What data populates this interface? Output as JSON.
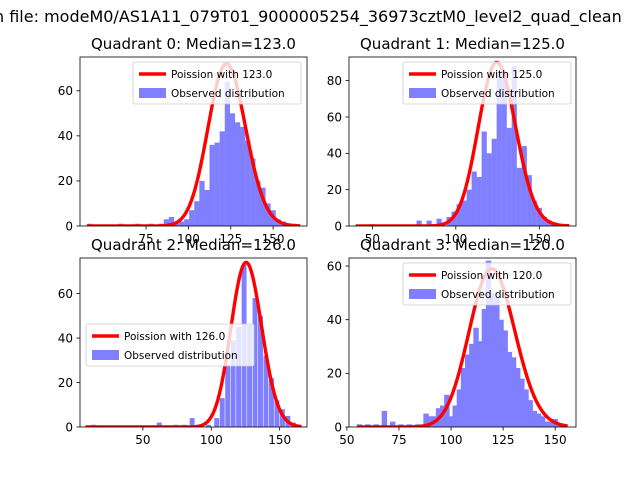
{
  "figure": {
    "suptitle": "n file: modeM0/AS1A11_079T01_9000005254_36973cztM0_level2_quad_clean"
  },
  "colors": {
    "hist": "#7f7fff",
    "fit": "#ff0000",
    "axis": "#000000"
  },
  "chart_data": [
    {
      "type": "bar",
      "title": "Quadrant 0: Median=123.0",
      "xlim": [
        36,
        170
      ],
      "ylim": [
        0,
        75
      ],
      "xticks": [
        75,
        100,
        125,
        150
      ],
      "yticks": [
        0,
        20,
        40,
        60
      ],
      "legend_position": "upper right",
      "bin_width": 3.1,
      "bars": [
        [
          42,
          1
        ],
        [
          60,
          1
        ],
        [
          70,
          1
        ],
        [
          78,
          1
        ],
        [
          84,
          1
        ],
        [
          87,
          3
        ],
        [
          90,
          4
        ],
        [
          93,
          1
        ],
        [
          96,
          2
        ],
        [
          99,
          3
        ],
        [
          102,
          7
        ],
        [
          105,
          11
        ],
        [
          108,
          20
        ],
        [
          111,
          16
        ],
        [
          114,
          36
        ],
        [
          117,
          37
        ],
        [
          120,
          42
        ],
        [
          123,
          64
        ],
        [
          126,
          50
        ],
        [
          129,
          46
        ],
        [
          132,
          44
        ],
        [
          135,
          38
        ],
        [
          138,
          30
        ],
        [
          141,
          20
        ],
        [
          144,
          17
        ],
        [
          147,
          10
        ],
        [
          150,
          7
        ],
        [
          153,
          3
        ],
        [
          156,
          2
        ],
        [
          162,
          1
        ]
      ],
      "series": [
        {
          "name": "Poission with 123.0",
          "kind": "poisson",
          "mean": 123.0,
          "peak": 72
        },
        {
          "name": "Observed distribution",
          "kind": "histogram"
        }
      ]
    },
    {
      "type": "bar",
      "title": "Quadrant 1: Median=125.0",
      "xlim": [
        36,
        172
      ],
      "ylim": [
        0,
        93
      ],
      "xticks": [
        50,
        100,
        150
      ],
      "yticks": [
        0,
        20,
        40,
        60,
        80
      ],
      "legend_position": "upper right",
      "bin_width": 3.1,
      "bars": [
        [
          50,
          1
        ],
        [
          78,
          3
        ],
        [
          84,
          3
        ],
        [
          90,
          4
        ],
        [
          96,
          5
        ],
        [
          99,
          8
        ],
        [
          102,
          12
        ],
        [
          105,
          14
        ],
        [
          108,
          20
        ],
        [
          111,
          30
        ],
        [
          114,
          27
        ],
        [
          117,
          52
        ],
        [
          120,
          40
        ],
        [
          123,
          48
        ],
        [
          126,
          85
        ],
        [
          129,
          84
        ],
        [
          132,
          54
        ],
        [
          135,
          88
        ],
        [
          138,
          32
        ],
        [
          141,
          44
        ],
        [
          144,
          28
        ],
        [
          147,
          14
        ],
        [
          150,
          10
        ],
        [
          153,
          5
        ],
        [
          156,
          3
        ],
        [
          159,
          2
        ],
        [
          165,
          1
        ]
      ],
      "series": [
        {
          "name": "Poission with 125.0",
          "kind": "poisson",
          "mean": 125.0,
          "peak": 90
        },
        {
          "name": "Observed distribution",
          "kind": "histogram"
        }
      ]
    },
    {
      "type": "bar",
      "title": "Quadrant 2: Median=126.0",
      "xlim": [
        4,
        170
      ],
      "ylim": [
        0,
        76
      ],
      "xticks": [
        50,
        100,
        150
      ],
      "yticks": [
        0,
        20,
        40,
        60
      ],
      "legend_position": "center left",
      "bin_width": 3.6,
      "bars": [
        [
          14,
          1
        ],
        [
          62,
          2
        ],
        [
          74,
          1
        ],
        [
          80,
          1
        ],
        [
          86,
          4
        ],
        [
          98,
          1
        ],
        [
          104,
          4
        ],
        [
          108,
          13
        ],
        [
          112,
          28
        ],
        [
          116,
          39
        ],
        [
          120,
          45
        ],
        [
          124,
          73
        ],
        [
          128,
          46
        ],
        [
          132,
          58
        ],
        [
          136,
          50
        ],
        [
          140,
          32
        ],
        [
          144,
          22
        ],
        [
          148,
          12
        ],
        [
          152,
          8
        ],
        [
          156,
          5
        ],
        [
          160,
          2
        ],
        [
          164,
          1
        ]
      ],
      "series": [
        {
          "name": "Poission with 126.0",
          "kind": "poisson",
          "mean": 126.0,
          "peak": 74
        },
        {
          "name": "Observed distribution",
          "kind": "histogram"
        }
      ]
    },
    {
      "type": "bar",
      "title": "Quadrant 3: Median=120.0",
      "xlim": [
        51,
        160
      ],
      "ylim": [
        0,
        63
      ],
      "xticks": [
        50,
        75,
        100,
        125,
        150
      ],
      "yticks": [
        0,
        20,
        40,
        60
      ],
      "legend_position": "upper right",
      "bin_width": 2.6,
      "bars": [
        [
          56,
          1
        ],
        [
          60,
          1
        ],
        [
          64,
          1
        ],
        [
          68,
          6
        ],
        [
          72,
          2
        ],
        [
          76,
          1
        ],
        [
          80,
          1
        ],
        [
          84,
          1
        ],
        [
          88,
          5
        ],
        [
          90,
          4
        ],
        [
          92,
          4
        ],
        [
          94,
          7
        ],
        [
          96,
          8
        ],
        [
          98,
          12
        ],
        [
          100,
          4
        ],
        [
          102,
          8
        ],
        [
          104,
          14
        ],
        [
          106,
          22
        ],
        [
          108,
          27
        ],
        [
          110,
          31
        ],
        [
          112,
          37
        ],
        [
          114,
          32
        ],
        [
          116,
          44
        ],
        [
          118,
          62
        ],
        [
          120,
          50
        ],
        [
          122,
          48
        ],
        [
          124,
          40
        ],
        [
          126,
          36
        ],
        [
          128,
          28
        ],
        [
          130,
          26
        ],
        [
          132,
          22
        ],
        [
          134,
          18
        ],
        [
          136,
          14
        ],
        [
          138,
          10
        ],
        [
          140,
          6
        ],
        [
          142,
          5
        ],
        [
          144,
          4
        ],
        [
          146,
          2
        ],
        [
          148,
          2
        ],
        [
          150,
          3
        ],
        [
          152,
          1
        ]
      ],
      "series": [
        {
          "name": "Poission with 120.0",
          "kind": "poisson",
          "mean": 120.0,
          "peak": 59
        },
        {
          "name": "Observed distribution",
          "kind": "histogram"
        }
      ]
    }
  ]
}
